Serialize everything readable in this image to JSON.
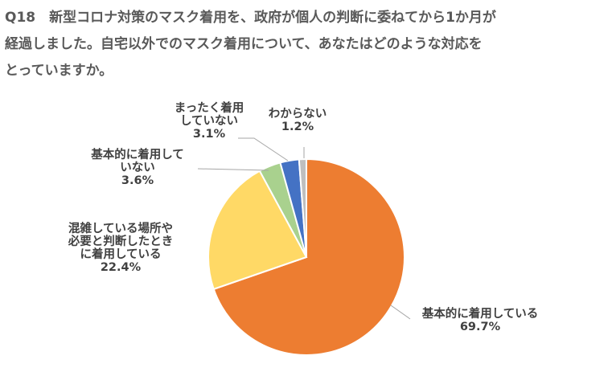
{
  "title": {
    "line1": "Q18　新型コロナ対策のマスク着用を、政府が個人の判断に委ねてから1か月が",
    "line2": "経過しました。自宅以外でのマスク着用について、あなたはどのような対応を",
    "line3": "とっていますか。"
  },
  "chart_data": {
    "type": "pie",
    "title": "Q18　新型コロナ対策のマスク着用を、政府が個人の判断に委ねてから1か月が経過しました。自宅以外でのマスク着用について、あなたはどのような対応をとっていますか。",
    "start": "12 o'clock, clockwise",
    "slices": [
      {
        "label": "基本的に着用している",
        "value": 69.7,
        "value_label": "69.7%",
        "color": "#ED7D31"
      },
      {
        "label": "混雑している場所や必要と判断したときに着用している",
        "value": 22.4,
        "value_label": "22.4%",
        "color": "#FFD966"
      },
      {
        "label": "基本的に着用していない",
        "value": 3.6,
        "value_label": "3.6%",
        "color": "#A9D18E"
      },
      {
        "label": "まったく着用していない",
        "value": 3.1,
        "value_label": "3.1%",
        "color": "#4472C4"
      },
      {
        "label": "わからない",
        "value": 1.2,
        "value_label": "1.2%",
        "color": "#BFBFBF"
      }
    ],
    "label_lines": [
      [
        "基本的に着用している",
        "69.7%"
      ],
      [
        "混雑している場所や",
        "必要と判断したとき",
        "に着用している",
        "22.4%"
      ],
      [
        "基本的に着用して",
        "いない",
        "3.6%"
      ],
      [
        "まったく着用",
        "していない",
        "3.1%"
      ],
      [
        "わからない",
        "1.2%"
      ]
    ]
  }
}
